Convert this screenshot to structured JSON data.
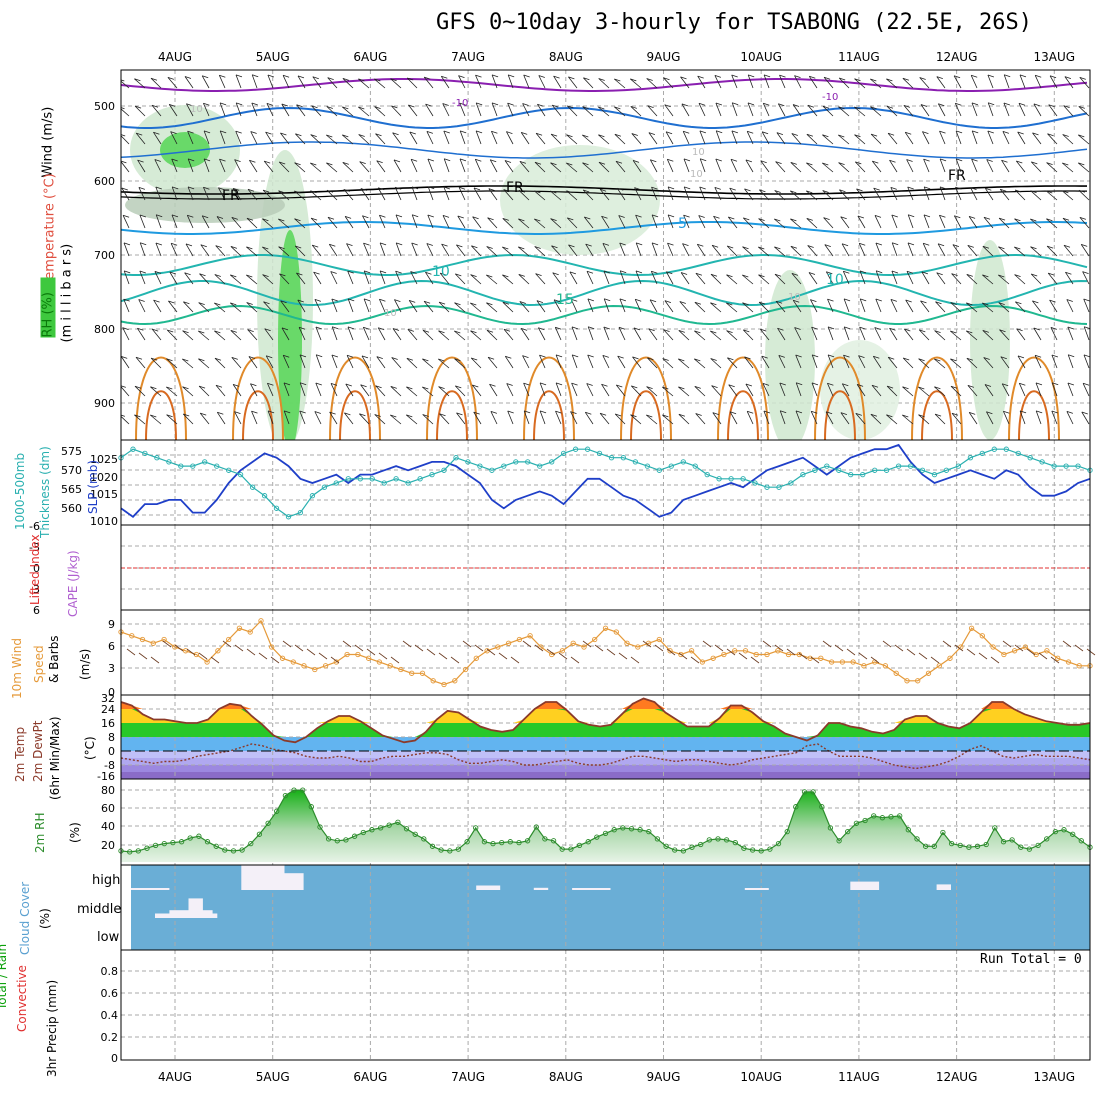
{
  "title": "GFS 0~10day 3-hourly for TSABONG (22.5E, 26S)",
  "dates": [
    "4AUG",
    "5AUG",
    "6AUG",
    "7AUG",
    "8AUG",
    "9AUG",
    "10AUG",
    "11AUG",
    "12AUG",
    "13AUG"
  ],
  "colors": {
    "frame": "#000000",
    "grid": "#aaaaaa",
    "wind_barb": "#222222",
    "temp_cold": "#8a1fb0",
    "temp_mid": "#1f6fd0",
    "temp_warm": "#23b5b0",
    "temp_hot": "#e08a2a",
    "rh_green": "#3ec83e",
    "slp": "#1f3fc8",
    "thickness": "#2ab0b0",
    "lifted_zero": "#e03030",
    "wind10m": "#e59a3a",
    "temp2m_curve": "#8b3a2a",
    "rh2m": "#2c8c2c",
    "cloud_blue": "#6aaed6"
  },
  "panels": {
    "upper": {
      "labels": [
        "Wind (m/s)",
        "Temperature (°C)",
        "RH (%)",
        "(m i l l i b a r s)"
      ],
      "yticks": [
        "500",
        "600",
        "700",
        "800",
        "900"
      ],
      "contour_labels": [
        "10",
        "-10",
        "-10",
        "FR",
        "FR",
        "FR",
        "5",
        "10",
        "10",
        "15",
        "10",
        "10",
        "10",
        "10"
      ]
    },
    "slp": {
      "labels": [
        "1000-500mb",
        "Thickness (dm)",
        "SLP (mb)"
      ],
      "left_ticks": [
        "575",
        "570",
        "565",
        "560"
      ],
      "right_ticks": [
        "1025",
        "1020",
        "1015",
        "1010"
      ]
    },
    "lifted": {
      "labels": [
        "Lifted Index",
        "CAPE (J/kg)"
      ],
      "yticks": [
        "-6",
        "-3",
        "0",
        "3",
        "6"
      ]
    },
    "wind10m": {
      "labels": [
        "10m Wind",
        "Speed",
        "& Barbs",
        "(m/s)"
      ],
      "yticks": [
        "9",
        "6",
        "3",
        "0"
      ]
    },
    "temp2m": {
      "labels": [
        "2m Temp",
        "2m DewPt",
        "(6hr Min/Max)",
        "(°C)"
      ],
      "yticks": [
        "32",
        "24",
        "16",
        "8",
        "0",
        "-8",
        "-16"
      ]
    },
    "rh2m": {
      "labels": [
        "2m RH",
        "(%)"
      ],
      "yticks": [
        "80",
        "60",
        "40",
        "20"
      ]
    },
    "cloud": {
      "labels": [
        "Cloud Cover",
        "(%)"
      ],
      "levels": [
        "high",
        "middle",
        "low"
      ]
    },
    "precip": {
      "labels": [
        "Total / Rain",
        "Convective",
        "3hr Precip (mm)"
      ],
      "yticks": [
        "0.8",
        "0.6",
        "0.4",
        "0.2",
        "0"
      ],
      "run_total": "Run Total = 0"
    }
  },
  "chart_data": [
    {
      "type": "line",
      "title": "1000-500mb Thickness (dm) / SLP (mb)",
      "series": [
        {
          "name": "SLP (mb)",
          "values": [
            1013,
            1011,
            1014,
            1014,
            1015,
            1015,
            1012,
            1012,
            1015,
            1019,
            1022,
            1024,
            1026,
            1025,
            1023,
            1020,
            1019,
            1020,
            1021,
            1019,
            1021,
            1021,
            1022,
            1023,
            1022,
            1023,
            1024,
            1024,
            1023,
            1021,
            1019,
            1015,
            1013,
            1015,
            1016,
            1017,
            1016,
            1014,
            1017,
            1020,
            1020,
            1018,
            1016,
            1015,
            1013,
            1011,
            1012,
            1015,
            1016,
            1017,
            1018,
            1019,
            1018,
            1020,
            1022,
            1023,
            1024,
            1025,
            1023,
            1021,
            1023,
            1025,
            1026,
            1027,
            1027,
            1028,
            1024,
            1021,
            1019,
            1020,
            1021,
            1022,
            1021,
            1020,
            1022,
            1021,
            1018,
            1016,
            1016,
            1017,
            1019,
            1020
          ]
        },
        {
          "name": "1000-500mb Thickness (dm)",
          "values": [
            573,
            575,
            574,
            573,
            572,
            571,
            571,
            572,
            571,
            570,
            569,
            566,
            564,
            561,
            559,
            560,
            564,
            566,
            567,
            568,
            568,
            568,
            567,
            568,
            567,
            568,
            569,
            570,
            573,
            572,
            571,
            570,
            571,
            572,
            572,
            571,
            572,
            574,
            575,
            575,
            574,
            573,
            573,
            572,
            571,
            570,
            571,
            572,
            571,
            569,
            568,
            568,
            568,
            567,
            566,
            566,
            567,
            569,
            570,
            571,
            570,
            569,
            569,
            570,
            570,
            571,
            571,
            570,
            569,
            570,
            571,
            573,
            574,
            575,
            575,
            574,
            573,
            572,
            571,
            571,
            571,
            570
          ]
        }
      ],
      "ylim_left": [
        558,
        576
      ],
      "ylim_right": [
        1010,
        1028
      ]
    },
    {
      "type": "line",
      "title": "10m Wind Speed (m/s)",
      "series": [
        {
          "name": "10m Wind Speed",
          "values": [
            8,
            7.5,
            7,
            6.5,
            7,
            6,
            5.5,
            5,
            4,
            5.5,
            7,
            8.5,
            8,
            9.5,
            6,
            4.5,
            4,
            3.5,
            3,
            3.5,
            4,
            5,
            5,
            4.5,
            4,
            3.5,
            3,
            2.5,
            2.5,
            1.5,
            1,
            1.5,
            3,
            4.5,
            5.5,
            6,
            6.5,
            7,
            7.5,
            6,
            5,
            5.5,
            6.5,
            6,
            7,
            8.5,
            8,
            6.5,
            6,
            6.5,
            7,
            5.5,
            5,
            5.5,
            4,
            4.5,
            5,
            5.5,
            5.5,
            5,
            5,
            5.5,
            5,
            5,
            4.5,
            4.5,
            4,
            4,
            4,
            3.5,
            4,
            3.5,
            2.5,
            1.5,
            1.5,
            2.5,
            3.5,
            4.5,
            6,
            8.5,
            7.5,
            6,
            5,
            5.5,
            6,
            5,
            5.5,
            4.5,
            4,
            3.5,
            3.5
          ]
        }
      ],
      "ylim": [
        0,
        10
      ]
    },
    {
      "type": "area",
      "title": "2m Temp / 2m DewPt (°C)",
      "series": [
        {
          "name": "2m Temp",
          "values": [
            28,
            26,
            21,
            18,
            18,
            17,
            16,
            16,
            18,
            24,
            27,
            26,
            20,
            15,
            9,
            6,
            5,
            8,
            13,
            17,
            20,
            20,
            17,
            13,
            9,
            7,
            5,
            6,
            11,
            18,
            23,
            22,
            18,
            14,
            12,
            11,
            12,
            18,
            24,
            28,
            28,
            23,
            17,
            15,
            14,
            15,
            21,
            27,
            30,
            28,
            22,
            18,
            14,
            14,
            14,
            19,
            26,
            26,
            22,
            17,
            14,
            10,
            8,
            6,
            9,
            16,
            16,
            14,
            13,
            11,
            10,
            12,
            18,
            20,
            20,
            16,
            14,
            13,
            16,
            22,
            28,
            28,
            24,
            21,
            19,
            17,
            16,
            15,
            15,
            16
          ]
        },
        {
          "name": "2m DewPt",
          "values": [
            -4,
            -5,
            -6,
            -7,
            -6,
            -6,
            -5,
            -3,
            -2,
            -1,
            0,
            2,
            4,
            3,
            1,
            0,
            -1,
            -3,
            -4,
            -4,
            -3,
            -4,
            -6,
            -6,
            -4,
            -3,
            -3,
            -2,
            -1,
            -1,
            -2,
            -5,
            -7,
            -7,
            -6,
            -5,
            -6,
            -8,
            -8,
            -7,
            -6,
            -5,
            -7,
            -8,
            -8,
            -7,
            -5,
            -3,
            -3,
            -4,
            -5,
            -6,
            -5,
            -5,
            -6,
            -7,
            -8,
            -7,
            -5,
            -4,
            -3,
            -2,
            -1,
            3,
            4,
            0,
            -3,
            -3,
            -3,
            -4,
            -6,
            -8,
            -9,
            -10,
            -9,
            -8,
            -6,
            -3,
            1,
            3,
            0,
            -3,
            -4,
            -3,
            -2,
            -3,
            -3,
            -3,
            -4,
            -5
          ]
        }
      ],
      "ylim": [
        -16,
        32
      ]
    },
    {
      "type": "area",
      "title": "2m RH (%)",
      "series": [
        {
          "name": "2m RH",
          "values": [
            12,
            11,
            12,
            15,
            18,
            20,
            21,
            22,
            26,
            28,
            22,
            17,
            13,
            12,
            13,
            20,
            30,
            42,
            55,
            72,
            78,
            78,
            60,
            38,
            25,
            23,
            24,
            28,
            32,
            35,
            37,
            40,
            43,
            36,
            30,
            25,
            17,
            13,
            12,
            14,
            22,
            37,
            22,
            20,
            21,
            22,
            21,
            23,
            38,
            25,
            23,
            14,
            14,
            18,
            22,
            27,
            31,
            35,
            37,
            36,
            35,
            33,
            25,
            17,
            13,
            12,
            16,
            19,
            24,
            25,
            24,
            21,
            15,
            13,
            12,
            14,
            20,
            33,
            60,
            76,
            76,
            60,
            37,
            23,
            33,
            42,
            45,
            50,
            48,
            49,
            50,
            35,
            25,
            17,
            17,
            32,
            20,
            18,
            16,
            17,
            19,
            37,
            22,
            24,
            16,
            14,
            18,
            25,
            33,
            35,
            30,
            23,
            16
          ]
        }
      ],
      "ylim": [
        0,
        90
      ]
    },
    {
      "type": "bar",
      "title": "Cloud Cover (%)",
      "series": [
        {
          "name": "high",
          "values": [
            [
              0.0,
              0.04,
              3
            ],
            [
              0.115,
              0.16,
              45
            ],
            [
              0.16,
              0.18,
              30
            ],
            [
              0.36,
              0.385,
              8
            ],
            [
              0.42,
              0.435,
              4
            ],
            [
              0.46,
              0.5,
              3
            ],
            [
              0.64,
              0.665,
              3
            ],
            [
              0.75,
              0.78,
              15
            ],
            [
              0.84,
              0.855,
              10
            ]
          ]
        },
        {
          "name": "middle",
          "values": [
            [
              0.025,
              0.09,
              8
            ],
            [
              0.04,
              0.085,
              14
            ],
            [
              0.06,
              0.075,
              35
            ]
          ]
        },
        {
          "name": "low",
          "values": []
        }
      ]
    },
    {
      "type": "bar",
      "title": "3hr Precip (mm)",
      "series": [
        {
          "name": "Total / Rain",
          "values": []
        },
        {
          "name": "Convective",
          "values": []
        }
      ],
      "ylim": [
        0,
        1
      ]
    }
  ]
}
